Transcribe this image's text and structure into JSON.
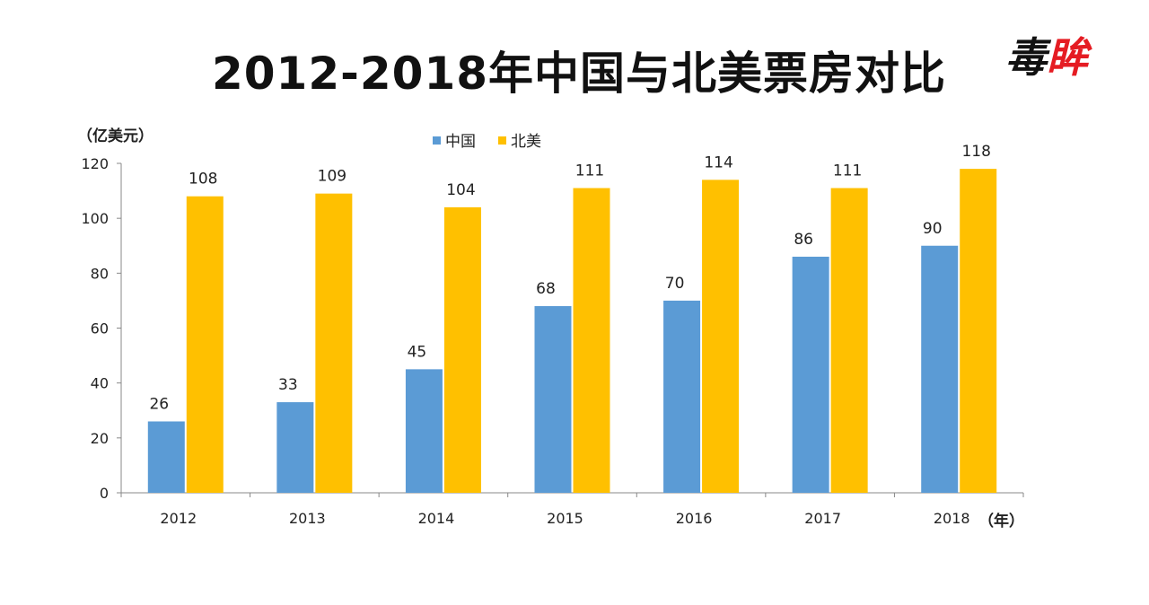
{
  "header": {
    "title": "2012-2018年中国与北美票房对比",
    "logo_part1": "毒",
    "logo_part2": "眸"
  },
  "chart_data": {
    "type": "bar",
    "title": "2012-2018年中国与北美票房对比",
    "y_unit_label": "（亿美元）",
    "x_unit_label": "（年）",
    "categories": [
      "2012",
      "2013",
      "2014",
      "2015",
      "2016",
      "2017",
      "2018"
    ],
    "series": [
      {
        "name": "中国",
        "values": [
          26,
          33,
          45,
          68,
          70,
          86,
          90
        ],
        "color": "#5b9bd5"
      },
      {
        "name": "北美",
        "values": [
          108,
          109,
          104,
          111,
          114,
          111,
          118
        ],
        "color": "#ffc000"
      }
    ],
    "ylim": [
      0,
      120
    ],
    "yticks": [
      0,
      20,
      40,
      60,
      80,
      100,
      120
    ],
    "grid": false,
    "legend_position": "top"
  }
}
